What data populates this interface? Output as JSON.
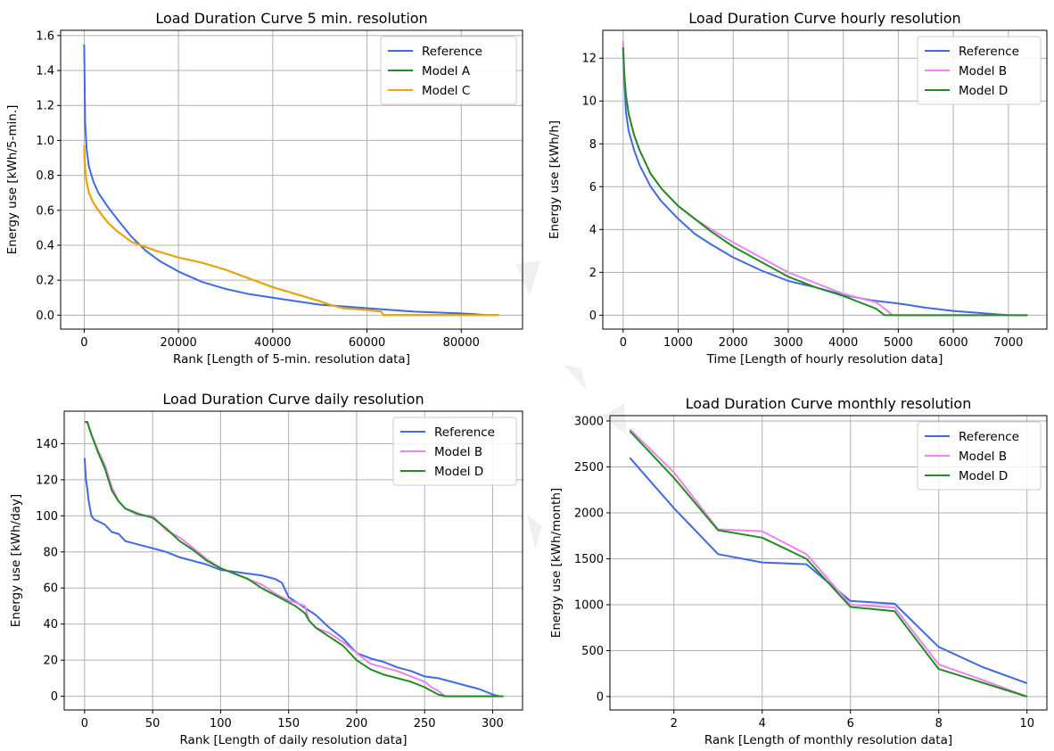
{
  "chart_data": [
    {
      "type": "line",
      "title": "Load Duration Curve 5 min. resolution",
      "xlabel": "Rank [Length of 5-min. resolution data]",
      "ylabel": "Energy use [kWh/5-min.]",
      "xlim": [
        -5000,
        93000
      ],
      "ylim": [
        -0.08,
        1.63
      ],
      "xticks": [
        0,
        20000,
        40000,
        60000,
        80000
      ],
      "xtick_labels": [
        "0",
        "20000",
        "40000",
        "60000",
        "80000"
      ],
      "yticks": [
        0.0,
        0.2,
        0.4,
        0.6,
        0.8,
        1.0,
        1.2,
        1.4,
        1.6
      ],
      "ytick_labels": [
        "0.0",
        "0.2",
        "0.4",
        "0.6",
        "0.8",
        "1.0",
        "1.2",
        "1.4",
        "1.6"
      ],
      "grid": true,
      "legend_position": "top-right",
      "series": [
        {
          "name": "Reference",
          "color": "#4169E1",
          "x": [
            0,
            200,
            500,
            1000,
            2000,
            3000,
            5000,
            7000,
            10000,
            13000,
            16000,
            20000,
            25000,
            30000,
            35000,
            40000,
            45000,
            50000,
            55000,
            60000,
            65000,
            70000,
            75000,
            80000,
            83000,
            85000
          ],
          "y": [
            1.55,
            1.1,
            0.95,
            0.85,
            0.76,
            0.7,
            0.62,
            0.55,
            0.45,
            0.37,
            0.31,
            0.25,
            0.19,
            0.15,
            0.12,
            0.1,
            0.08,
            0.06,
            0.05,
            0.04,
            0.03,
            0.02,
            0.015,
            0.01,
            0.005,
            0.0
          ]
        },
        {
          "name": "Model A",
          "color": "#228B22",
          "x": [
            0,
            100,
            300,
            600,
            1000,
            2000,
            3000,
            5000,
            7000,
            10000,
            15000,
            20000,
            25000,
            30000,
            35000,
            40000,
            45000,
            50000,
            52000,
            55000,
            60000,
            63000,
            63500,
            70000,
            80000,
            88000
          ],
          "y": [
            0.97,
            0.88,
            0.8,
            0.75,
            0.7,
            0.64,
            0.6,
            0.53,
            0.48,
            0.42,
            0.37,
            0.33,
            0.3,
            0.26,
            0.21,
            0.16,
            0.12,
            0.08,
            0.06,
            0.04,
            0.03,
            0.02,
            0.0,
            0.0,
            0.0,
            0.0
          ]
        },
        {
          "name": "Model C",
          "color": "#F4A300",
          "x": [
            0,
            100,
            300,
            600,
            1000,
            2000,
            3000,
            5000,
            7000,
            10000,
            15000,
            20000,
            25000,
            30000,
            35000,
            40000,
            45000,
            50000,
            52000,
            55000,
            60000,
            63000,
            63500,
            70000,
            80000,
            88000
          ],
          "y": [
            0.97,
            0.88,
            0.8,
            0.75,
            0.7,
            0.64,
            0.6,
            0.53,
            0.48,
            0.42,
            0.37,
            0.33,
            0.3,
            0.26,
            0.21,
            0.16,
            0.12,
            0.08,
            0.06,
            0.04,
            0.03,
            0.02,
            0.0,
            0.0,
            0.0,
            0.0
          ]
        }
      ]
    },
    {
      "type": "line",
      "title": "Load Duration Curve hourly resolution",
      "xlabel": "Time [Length of hourly resolution data]",
      "ylabel": "Energy use [kWh/h]",
      "xlim": [
        -370,
        7700
      ],
      "ylim": [
        -0.65,
        13.3
      ],
      "xticks": [
        0,
        1000,
        2000,
        3000,
        4000,
        5000,
        6000,
        7000
      ],
      "xtick_labels": [
        "0",
        "1000",
        "2000",
        "3000",
        "4000",
        "5000",
        "6000",
        "7000"
      ],
      "yticks": [
        0,
        2,
        4,
        6,
        8,
        10,
        12
      ],
      "ytick_labels": [
        "0",
        "2",
        "4",
        "6",
        "8",
        "10",
        "12"
      ],
      "grid": true,
      "legend_position": "top-right",
      "series": [
        {
          "name": "Reference",
          "color": "#4169E1",
          "x": [
            0,
            20,
            50,
            100,
            200,
            300,
            500,
            700,
            1000,
            1300,
            1600,
            2000,
            2500,
            3000,
            3500,
            4000,
            4500,
            5000,
            5500,
            6000,
            6500,
            7000
          ],
          "y": [
            12.5,
            11.0,
            9.5,
            8.6,
            7.7,
            7.0,
            6.0,
            5.3,
            4.5,
            3.8,
            3.3,
            2.7,
            2.1,
            1.6,
            1.3,
            0.95,
            0.7,
            0.55,
            0.35,
            0.2,
            0.1,
            0.0
          ]
        },
        {
          "name": "Model B",
          "color": "#EE82EE",
          "x": [
            0,
            20,
            50,
            100,
            200,
            300,
            500,
            700,
            1000,
            1300,
            1600,
            2000,
            2500,
            3000,
            3500,
            4000,
            4300,
            4600,
            4800,
            4900,
            5500,
            6500,
            7350
          ],
          "y": [
            12.8,
            11.3,
            10.3,
            9.4,
            8.4,
            7.7,
            6.6,
            5.9,
            5.1,
            4.5,
            4.0,
            3.4,
            2.7,
            2.0,
            1.5,
            1.0,
            0.8,
            0.6,
            0.2,
            0.0,
            0.0,
            0.0,
            0.0
          ]
        },
        {
          "name": "Model D",
          "color": "#228B22",
          "x": [
            0,
            20,
            50,
            100,
            200,
            300,
            500,
            700,
            1000,
            1300,
            1600,
            2000,
            2500,
            3000,
            3500,
            4000,
            4300,
            4600,
            4750,
            4900,
            5500,
            6500,
            7350
          ],
          "y": [
            12.5,
            11.2,
            10.3,
            9.4,
            8.4,
            7.7,
            6.6,
            5.9,
            5.1,
            4.5,
            3.9,
            3.2,
            2.5,
            1.8,
            1.3,
            0.9,
            0.6,
            0.3,
            0.0,
            0.0,
            0.0,
            0.0,
            0.0
          ]
        }
      ]
    },
    {
      "type": "line",
      "title": "Load Duration Curve daily resolution",
      "xlabel": "Rank [Length of daily resolution data]",
      "ylabel": "Energy use [kWh/day]",
      "xlim": [
        -15,
        322
      ],
      "ylim": [
        -7.6,
        158
      ],
      "xticks": [
        0,
        50,
        100,
        150,
        200,
        250,
        300
      ],
      "xtick_labels": [
        "0",
        "50",
        "100",
        "150",
        "200",
        "250",
        "300"
      ],
      "yticks": [
        0,
        20,
        40,
        60,
        80,
        100,
        120,
        140
      ],
      "ytick_labels": [
        "0",
        "20",
        "40",
        "60",
        "80",
        "100",
        "120",
        "140"
      ],
      "grid": true,
      "legend_position": "top-right",
      "series": [
        {
          "name": "Reference",
          "color": "#4169E1",
          "x": [
            0,
            1,
            2,
            3,
            5,
            7,
            10,
            15,
            20,
            25,
            30,
            40,
            50,
            60,
            70,
            80,
            90,
            100,
            110,
            120,
            130,
            140,
            145,
            150,
            160,
            170,
            180,
            190,
            200,
            210,
            220,
            230,
            240,
            250,
            260,
            270,
            280,
            290,
            300,
            305
          ],
          "y": [
            132,
            120,
            115,
            108,
            100,
            98,
            97,
            95,
            91,
            90,
            86,
            84,
            82,
            80,
            77,
            75,
            73,
            70,
            69,
            68,
            67,
            65,
            63,
            55,
            50,
            45,
            38,
            32,
            24,
            21,
            19,
            16,
            14,
            11,
            10,
            8,
            6,
            4,
            1,
            0
          ]
        },
        {
          "name": "Model B",
          "color": "#EE82EE",
          "x": [
            0,
            2,
            5,
            10,
            15,
            20,
            25,
            30,
            40,
            50,
            60,
            70,
            80,
            90,
            100,
            110,
            120,
            130,
            140,
            150,
            155,
            162,
            165,
            170,
            180,
            190,
            200,
            210,
            220,
            230,
            240,
            250,
            255,
            260,
            265,
            270,
            290,
            308
          ],
          "y": [
            152,
            152,
            145,
            136,
            128,
            116,
            108,
            104,
            100,
            100,
            92,
            88,
            82,
            76,
            71,
            68,
            65,
            62,
            57,
            53,
            52,
            50,
            42,
            38,
            35,
            30,
            24,
            18,
            16,
            14,
            11,
            8,
            5,
            3,
            0,
            0,
            0,
            0
          ]
        },
        {
          "name": "Model D",
          "color": "#228B22",
          "x": [
            0,
            2,
            5,
            10,
            15,
            20,
            25,
            30,
            40,
            50,
            60,
            70,
            80,
            90,
            100,
            110,
            120,
            130,
            140,
            150,
            155,
            162,
            165,
            170,
            180,
            190,
            200,
            210,
            220,
            230,
            240,
            250,
            255,
            260,
            265,
            270,
            290,
            308
          ],
          "y": [
            152,
            152,
            145,
            135,
            126,
            114,
            108,
            104,
            101,
            99,
            93,
            86,
            81,
            75,
            71,
            68,
            65,
            60,
            56,
            52,
            50,
            46,
            42,
            38,
            33,
            28,
            20,
            15,
            12,
            10,
            8,
            5,
            3,
            1,
            0,
            0,
            0,
            0
          ]
        }
      ]
    },
    {
      "type": "line",
      "title": "Load Duration Curve monthly resolution",
      "xlabel": "Rank [Length of monthly resolution data]",
      "ylabel": "Energy use [kWh/month]",
      "xlim": [
        0.55,
        10.45
      ],
      "ylim": [
        -146,
        3058
      ],
      "xticks": [
        2,
        4,
        6,
        8,
        10
      ],
      "xtick_labels": [
        "2",
        "4",
        "6",
        "8",
        "10"
      ],
      "yticks": [
        0,
        500,
        1000,
        1500,
        2000,
        2500,
        3000
      ],
      "ytick_labels": [
        "0",
        "500",
        "1000",
        "1500",
        "2000",
        "2500",
        "3000"
      ],
      "grid": true,
      "legend_position": "top-right",
      "series": [
        {
          "name": "Reference",
          "color": "#4169E1",
          "x": [
            1,
            2,
            3,
            4,
            5,
            6,
            7,
            8,
            9,
            10
          ],
          "y": [
            2600,
            2050,
            1550,
            1460,
            1440,
            1040,
            1010,
            540,
            320,
            145
          ]
        },
        {
          "name": "Model B",
          "color": "#EE82EE",
          "x": [
            1,
            2,
            3,
            4,
            5,
            6,
            7,
            8,
            9,
            10
          ],
          "y": [
            2910,
            2440,
            1820,
            1800,
            1550,
            1000,
            970,
            350,
            180,
            0
          ]
        },
        {
          "name": "Model D",
          "color": "#228B22",
          "x": [
            1,
            2,
            3,
            4,
            5,
            6,
            7,
            8,
            9,
            10
          ],
          "y": [
            2890,
            2380,
            1810,
            1730,
            1500,
            975,
            930,
            300,
            150,
            0
          ]
        }
      ]
    }
  ]
}
